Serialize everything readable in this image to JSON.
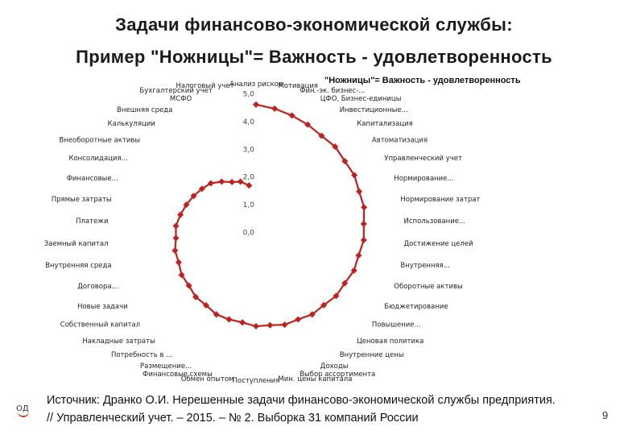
{
  "slide": {
    "title_line1": "Задачи финансово-экономической службы:",
    "title_line2": "Пример \"Ножницы\"= Важность - удовлетворенность",
    "source": "Источник: Дранко О.И. Нерешенные задачи финансово-экономической службы предприятия. // Управленческий учет. – 2015. – № 2. Выборка 31 компаний России",
    "logo_text": "ОД",
    "page_number": "9"
  },
  "chart_data": {
    "type": "radar",
    "title": "\"Ножницы\"= Важность - удовлетворенность",
    "radial_range": [
      0,
      5
    ],
    "tick_labels": [
      "0,0",
      "1,0",
      "2,0",
      "3,0",
      "4,0",
      "5,0"
    ],
    "grid": false,
    "legend": "none",
    "colors": {
      "series": "#c0201e",
      "marker": "#c0201e"
    },
    "categories": [
      "Анализ рисков",
      "Мотивация",
      "Фин.-эк. бизнес-...",
      "ЦФО, Бизнес-единицы",
      "Инвестиционные...",
      "Капитализация",
      "Автоматизация",
      "Управленческий учет",
      "Нормирование...",
      "Нормирование затрат",
      "Использование...",
      "Достижение целей",
      "Внутренняя...",
      "Оборотные активы",
      "Бюджетирование",
      "Повышение...",
      "Ценовая политика",
      "Внутренние цены",
      "Доходы",
      "Выбор ассортимента",
      "Мин. цены капитала",
      "Поступления",
      "Обмен опытом",
      "Финансовые схемы",
      "Размещение...",
      "Потребность в ...",
      "Накладные затраты",
      "Собственный капитал",
      "Новые задачи",
      "Договора...",
      "Внутренняя среда",
      "Заемный капитал",
      "Платежи",
      "Прямые затраты",
      "Финансовые...",
      "Консолидация...",
      "Внеоборотные активы",
      "Калькуляции",
      "Внешняя среда",
      "МСФО",
      "Бухгалтерский учет",
      "Налоговый учет"
    ],
    "values": [
      4.6,
      4.5,
      4.4,
      4.3,
      4.2,
      4.2,
      4.1,
      4.1,
      4.0,
      4.0,
      3.9,
      3.9,
      3.8,
      3.8,
      3.7,
      3.7,
      3.6,
      3.6,
      3.5,
      3.5,
      3.4,
      3.4,
      3.3,
      3.3,
      3.3,
      3.2,
      3.2,
      3.1,
      3.1,
      3.0,
      3.0,
      2.9,
      2.9,
      2.8,
      2.7,
      2.6,
      2.5,
      2.4,
      2.2,
      2.0,
      1.9,
      1.7
    ]
  }
}
